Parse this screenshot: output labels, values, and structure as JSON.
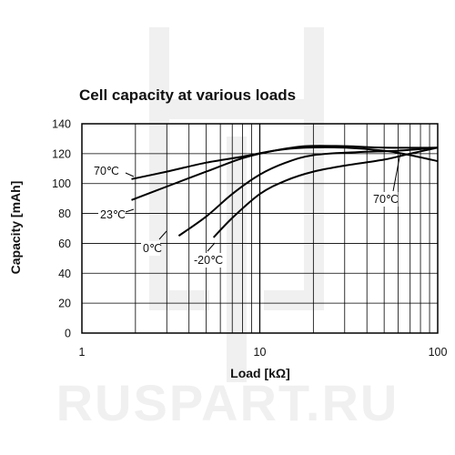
{
  "watermark": {
    "text": "RUSPART.RU",
    "logo": "ruspart-logo-watermark"
  },
  "chart_data": {
    "type": "line",
    "title": "Cell capacity at various loads",
    "xlabel": "Load [kΩ]",
    "ylabel": "Capacity [mAh]",
    "xscale": "log",
    "xlim": [
      1,
      100
    ],
    "ylim": [
      0,
      140
    ],
    "x_ticks": [
      1,
      10,
      100
    ],
    "x_tick_labels": [
      "1",
      "10",
      "100"
    ],
    "y_ticks": [
      0,
      20,
      40,
      60,
      80,
      100,
      120,
      140
    ],
    "y_tick_labels": [
      "0",
      "20",
      "40",
      "60",
      "80",
      "100",
      "120",
      "140"
    ],
    "grid": true,
    "series": [
      {
        "name": "70℃",
        "label_at_end": "70℃",
        "x": [
          1.9,
          3,
          5,
          8,
          12,
          18,
          30,
          50,
          70,
          100
        ],
        "y": [
          103,
          108,
          114,
          118,
          122,
          124,
          124,
          122,
          119,
          115
        ]
      },
      {
        "name": "23℃",
        "x": [
          1.9,
          3,
          5,
          8,
          12,
          18,
          30,
          50,
          100
        ],
        "y": [
          89,
          98,
          108,
          117,
          122,
          125,
          125,
          124,
          124
        ]
      },
      {
        "name": "0℃",
        "x": [
          3.5,
          5,
          7,
          10,
          14,
          20,
          35,
          60,
          100
        ],
        "y": [
          65,
          78,
          93,
          106,
          114,
          119,
          121,
          122,
          124
        ]
      },
      {
        "name": "-20℃",
        "x": [
          5.5,
          7,
          10,
          14,
          20,
          30,
          50,
          70,
          100
        ],
        "y": [
          64,
          77,
          93,
          102,
          108,
          112,
          116,
          120,
          124
        ]
      }
    ]
  }
}
